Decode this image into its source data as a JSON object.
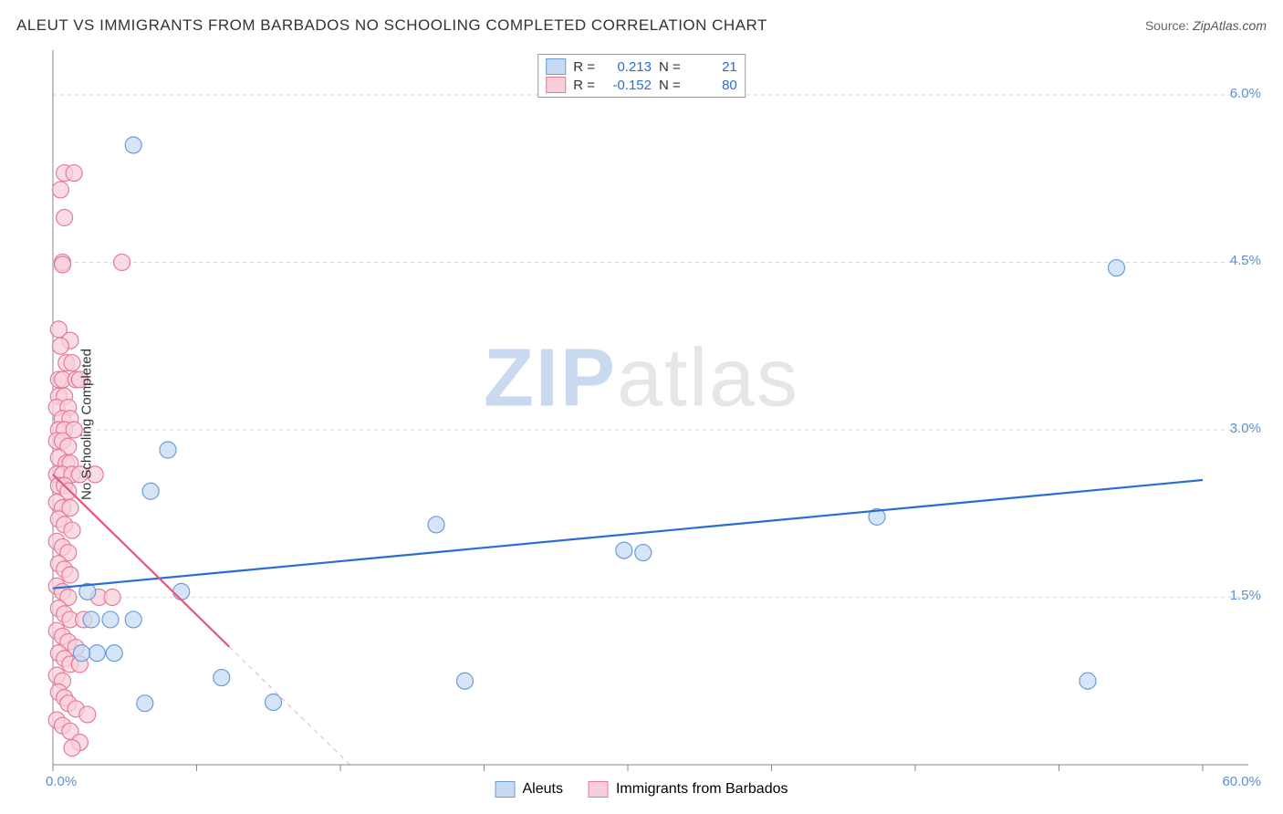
{
  "meta": {
    "title": "ALEUT VS IMMIGRANTS FROM BARBADOS NO SCHOOLING COMPLETED CORRELATION CHART",
    "source_label": "Source:",
    "source_value": "ZipAtlas.com",
    "watermark_a": "ZIP",
    "watermark_b": "atlas"
  },
  "chart": {
    "type": "scatter",
    "ylabel": "No Schooling Completed",
    "xlim": [
      0,
      60
    ],
    "ylim": [
      0,
      6.4
    ],
    "xtick_positions": [
      0,
      7.5,
      15,
      22.5,
      30,
      37.5,
      45,
      52.5,
      60
    ],
    "xtick_labels_shown": {
      "0": "0.0%",
      "60": "60.0%"
    },
    "ytick_grid": [
      1.5,
      3.0,
      4.5,
      6.0
    ],
    "ytick_labels": [
      "1.5%",
      "3.0%",
      "4.5%",
      "6.0%"
    ],
    "background_color": "#ffffff",
    "grid_color": "#d8d8d8",
    "axis_color": "#888888",
    "tick_label_color": "#5a8fd6",
    "label_fontsize": 15,
    "marker_radius": 9,
    "marker_stroke_width": 1.2,
    "trend_line_width": 2.2,
    "series": [
      {
        "name": "Aleuts",
        "color_fill": "#c7dbf3",
        "color_stroke": "#6a9cd8",
        "trend_color": "#2a6dd4",
        "R": 0.213,
        "N": 21,
        "trend": {
          "x1": 0,
          "y1": 1.58,
          "x2": 60,
          "y2": 2.55
        },
        "trend_dash_from_x": null,
        "points": [
          [
            4.2,
            5.55
          ],
          [
            55.5,
            4.45
          ],
          [
            6.0,
            2.82
          ],
          [
            5.1,
            2.45
          ],
          [
            20.0,
            2.15
          ],
          [
            29.8,
            1.92
          ],
          [
            30.8,
            1.9
          ],
          [
            43.0,
            2.22
          ],
          [
            6.7,
            1.55
          ],
          [
            3.0,
            1.3
          ],
          [
            4.2,
            1.3
          ],
          [
            2.3,
            1.0
          ],
          [
            3.2,
            1.0
          ],
          [
            1.5,
            1.0
          ],
          [
            8.8,
            0.78
          ],
          [
            11.5,
            0.56
          ],
          [
            21.5,
            0.75
          ],
          [
            54.0,
            0.75
          ],
          [
            4.8,
            0.55
          ],
          [
            1.8,
            1.55
          ],
          [
            2.0,
            1.3
          ]
        ]
      },
      {
        "name": "Immigrants from Barbados",
        "color_fill": "#f7cfd9",
        "color_stroke": "#e77a9a",
        "trend_color": "#e7577e",
        "R": -0.152,
        "N": 80,
        "trend": {
          "x1": 0,
          "y1": 2.6,
          "x2": 15.5,
          "y2": 0.0
        },
        "trend_dash_from_x": 9.2,
        "points": [
          [
            0.6,
            5.3
          ],
          [
            1.1,
            5.3
          ],
          [
            0.4,
            5.15
          ],
          [
            0.6,
            4.9
          ],
          [
            0.5,
            4.5
          ],
          [
            0.5,
            4.48
          ],
          [
            3.6,
            4.5
          ],
          [
            0.3,
            3.9
          ],
          [
            0.9,
            3.8
          ],
          [
            0.4,
            3.75
          ],
          [
            0.7,
            3.6
          ],
          [
            1.0,
            3.6
          ],
          [
            0.3,
            3.45
          ],
          [
            0.5,
            3.45
          ],
          [
            1.2,
            3.45
          ],
          [
            1.4,
            3.45
          ],
          [
            0.3,
            3.3
          ],
          [
            0.6,
            3.3
          ],
          [
            0.2,
            3.2
          ],
          [
            0.8,
            3.2
          ],
          [
            0.5,
            3.1
          ],
          [
            0.9,
            3.1
          ],
          [
            0.3,
            3.0
          ],
          [
            0.6,
            3.0
          ],
          [
            1.1,
            3.0
          ],
          [
            0.2,
            2.9
          ],
          [
            0.5,
            2.9
          ],
          [
            0.8,
            2.85
          ],
          [
            0.3,
            2.75
          ],
          [
            0.7,
            2.7
          ],
          [
            0.9,
            2.7
          ],
          [
            0.2,
            2.6
          ],
          [
            0.5,
            2.6
          ],
          [
            1.0,
            2.6
          ],
          [
            1.4,
            2.6
          ],
          [
            2.2,
            2.6
          ],
          [
            0.3,
            2.5
          ],
          [
            0.6,
            2.5
          ],
          [
            0.8,
            2.45
          ],
          [
            0.2,
            2.35
          ],
          [
            0.5,
            2.3
          ],
          [
            0.9,
            2.3
          ],
          [
            0.3,
            2.2
          ],
          [
            0.6,
            2.15
          ],
          [
            1.0,
            2.1
          ],
          [
            0.2,
            2.0
          ],
          [
            0.5,
            1.95
          ],
          [
            0.8,
            1.9
          ],
          [
            0.3,
            1.8
          ],
          [
            0.6,
            1.75
          ],
          [
            0.9,
            1.7
          ],
          [
            0.2,
            1.6
          ],
          [
            0.5,
            1.55
          ],
          [
            0.8,
            1.5
          ],
          [
            2.4,
            1.5
          ],
          [
            3.1,
            1.5
          ],
          [
            0.3,
            1.4
          ],
          [
            0.6,
            1.35
          ],
          [
            0.9,
            1.3
          ],
          [
            1.6,
            1.3
          ],
          [
            0.2,
            1.2
          ],
          [
            0.5,
            1.15
          ],
          [
            0.8,
            1.1
          ],
          [
            1.2,
            1.05
          ],
          [
            0.3,
            1.0
          ],
          [
            0.6,
            0.95
          ],
          [
            0.9,
            0.9
          ],
          [
            1.4,
            0.9
          ],
          [
            0.2,
            0.8
          ],
          [
            0.5,
            0.75
          ],
          [
            0.3,
            0.65
          ],
          [
            0.6,
            0.6
          ],
          [
            0.8,
            0.55
          ],
          [
            1.2,
            0.5
          ],
          [
            1.8,
            0.45
          ],
          [
            0.2,
            0.4
          ],
          [
            0.5,
            0.35
          ],
          [
            0.9,
            0.3
          ],
          [
            1.4,
            0.2
          ],
          [
            1.0,
            0.15
          ]
        ]
      }
    ],
    "legend_bottom": [
      {
        "label": "Aleuts",
        "fill": "#c7dbf3",
        "stroke": "#6a9cd8"
      },
      {
        "label": "Immigrants from Barbados",
        "fill": "#f7cfd9",
        "stroke": "#e77a9a"
      }
    ]
  }
}
